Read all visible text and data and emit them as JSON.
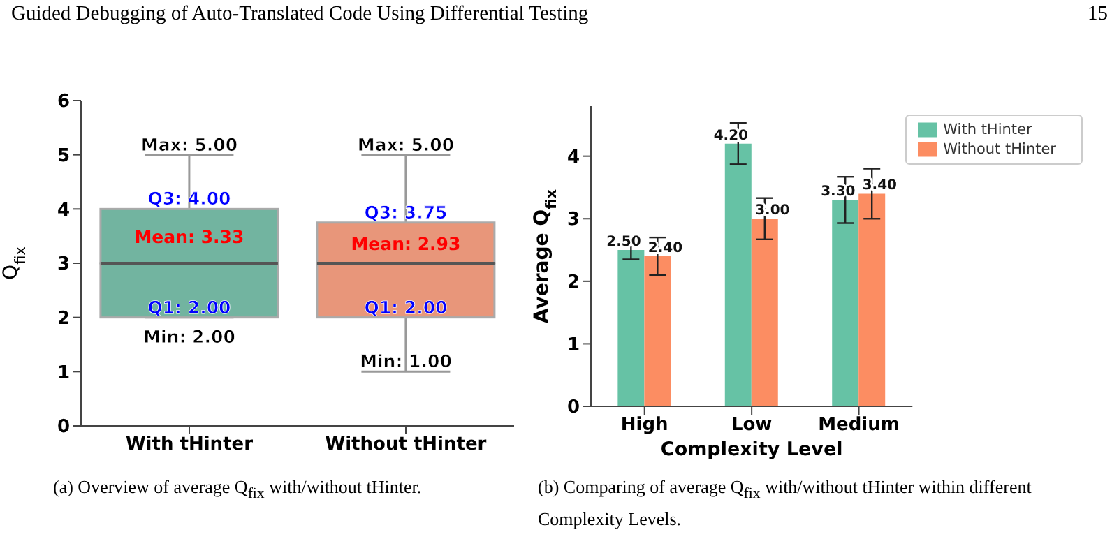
{
  "chart_data": [
    {
      "type": "box",
      "ylabel": "Q$_{fix}$",
      "categories": [
        "With tHinter",
        "Without tHinter"
      ],
      "colors": [
        "#72b4a0",
        "#e8967a"
      ],
      "boxes": [
        {
          "low": 2,
          "q1": 2,
          "median": 3,
          "q3": 4,
          "high": 5
        },
        {
          "low": 1,
          "q1": 2,
          "median": 3,
          "q3": 3.75,
          "high": 5
        }
      ],
      "ylim": [
        0,
        6
      ],
      "yticks": [
        0,
        1,
        2,
        3,
        4,
        5,
        6
      ],
      "annotations": [
        "Guided Debugging of Auto-Translated Code Using Differential Testing",
        "15",
        "(a) Overview of average Q$_{fix}$ with/without tHinter.",
        "Mean: 3.33",
        "Mean: 2.93",
        {
          "text": "Max: 5.00",
          "x": "With tHinter",
          "y": 5
        },
        {
          "text": "Q3: 4.00",
          "x": "With tHinter",
          "y": 4
        },
        {
          "text": "Q1: 2.00",
          "x": "With tHinter",
          "y": 2
        },
        {
          "text": "Min: 2.00",
          "x": "With tHinter",
          "y": 2
        },
        {
          "text": "Max: 5.00",
          "x": "Without tHinter",
          "y": 5
        },
        {
          "text": "Q3: 3.75",
          "x": "Without tHinter",
          "y": 3.75
        },
        {
          "text": "Q1: 2.00",
          "x": "Without tHinter",
          "y": 2
        },
        {
          "text": "Min: 1.00",
          "x": "Without tHinter",
          "y": 1
        }
      ]
    },
    {
      "type": "bar",
      "xlabel": "Complexity Level",
      "ylabel": "Average Q$_{fix}$",
      "categories": [
        "High",
        "Low",
        "Medium"
      ],
      "series": [
        {
          "name": "With tHinter",
          "color": "#66c2a5",
          "values": [
            2.5,
            4.2,
            3.3
          ],
          "errors": [
            0.15,
            0.33,
            0.37
          ],
          "value_labels": [
            "2.50",
            "4.20",
            "3.30"
          ]
        },
        {
          "name": "Without tHinter",
          "color": "#fc8d62",
          "values": [
            2.4,
            3.0,
            3.4
          ],
          "errors": [
            0.3,
            0.33,
            0.4
          ],
          "value_labels": [
            "2.40",
            "3.00",
            "3.40"
          ]
        }
      ],
      "ylim": [
        0,
        4.8
      ],
      "yticks": [
        0,
        1,
        2,
        3,
        4
      ],
      "legend": "top right",
      "annotations": [
        "(b) Comparing of average Q$_{fix}$ with/without tHinter within different Complexity Levels."
      ]
    }
  ]
}
